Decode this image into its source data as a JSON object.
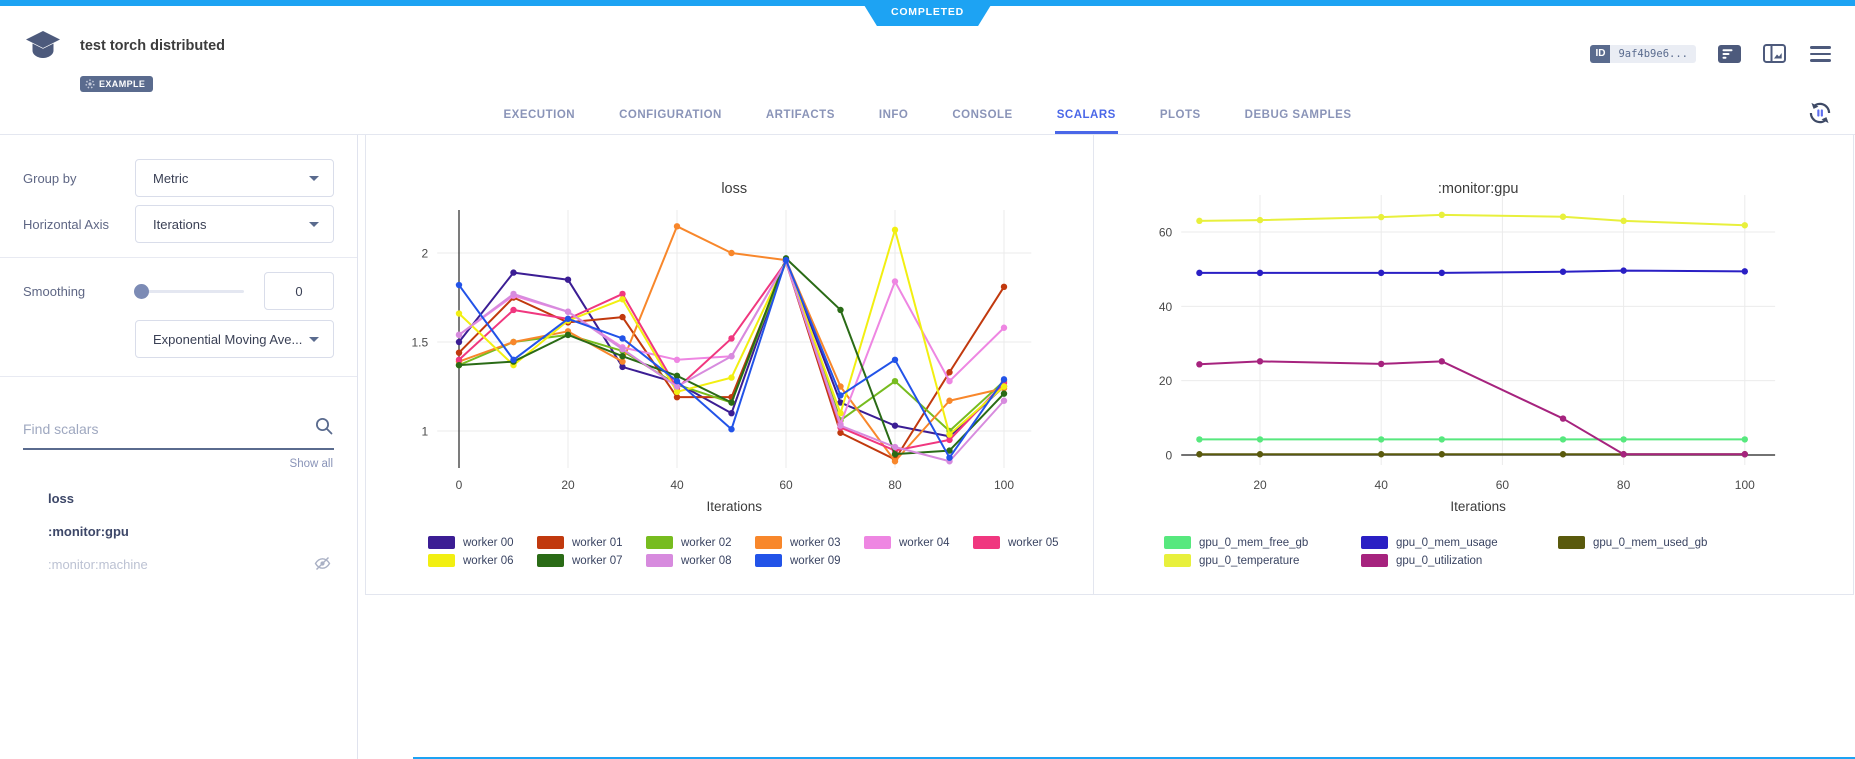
{
  "status_banner": {
    "label": "COMPLETED",
    "color": "#1da3f3"
  },
  "header": {
    "title": "test torch distributed",
    "example_badge": "EXAMPLE",
    "id_badge": {
      "label": "ID",
      "value": "9af4b9e6..."
    }
  },
  "tabs": {
    "items": [
      "EXECUTION",
      "CONFIGURATION",
      "ARTIFACTS",
      "INFO",
      "CONSOLE",
      "SCALARS",
      "PLOTS",
      "DEBUG SAMPLES"
    ],
    "active": "SCALARS",
    "active_color": "#4a67e8"
  },
  "sidebar": {
    "group_by": {
      "label": "Group by",
      "value": "Metric"
    },
    "horizontal_axis": {
      "label": "Horizontal Axis",
      "value": "Iterations"
    },
    "smoothing": {
      "label": "Smoothing",
      "value": "0",
      "method": "Exponential Moving Ave..."
    },
    "search": {
      "placeholder": "Find scalars"
    },
    "show_all": "Show all",
    "metrics": [
      {
        "label": "loss",
        "hidden": false
      },
      {
        "label": ":monitor:gpu",
        "hidden": false
      },
      {
        "label": ":monitor:machine",
        "hidden": true
      }
    ]
  },
  "chart_data": [
    {
      "type": "line",
      "title": "loss",
      "xlabel": "Iterations",
      "ylabel": "",
      "grid": true,
      "legend_position": "bottom",
      "x": [
        0,
        10,
        20,
        30,
        40,
        50,
        60,
        70,
        80,
        90,
        100
      ],
      "xlim": [
        -4,
        105
      ],
      "ylim": [
        0.78,
        2.25
      ],
      "xticks": [
        0,
        20,
        40,
        60,
        80,
        100
      ],
      "yticks": [
        1,
        1.5,
        2
      ],
      "zeroline": "x",
      "series": [
        {
          "name": "worker 00",
          "color": "#3b1d94",
          "values": [
            1.5,
            1.89,
            1.85,
            1.36,
            1.27,
            1.1,
            1.96,
            1.16,
            1.03,
            0.97,
            1.25
          ]
        },
        {
          "name": "worker 01",
          "color": "#c1390e",
          "values": [
            1.44,
            1.75,
            1.61,
            1.64,
            1.19,
            1.19,
            1.95,
            0.99,
            0.84,
            1.33,
            1.81
          ]
        },
        {
          "name": "worker 02",
          "color": "#77bc1f",
          "values": [
            1.37,
            1.5,
            1.54,
            1.45,
            1.26,
            1.16,
            1.95,
            1.06,
            1.28,
            1.0,
            1.28
          ]
        },
        {
          "name": "worker 03",
          "color": "#f8872b",
          "values": [
            1.39,
            1.5,
            1.56,
            1.39,
            2.15,
            2.0,
            1.96,
            1.25,
            0.83,
            1.17,
            1.24
          ]
        },
        {
          "name": "worker 04",
          "color": "#ee86e2",
          "values": [
            1.54,
            1.76,
            1.67,
            1.47,
            1.4,
            1.42,
            1.95,
            1.04,
            1.84,
            1.28,
            1.58
          ]
        },
        {
          "name": "worker 05",
          "color": "#f0377f",
          "values": [
            1.4,
            1.68,
            1.63,
            1.77,
            1.24,
            1.52,
            1.95,
            1.02,
            0.89,
            0.95,
            1.27
          ]
        },
        {
          "name": "worker 06",
          "color": "#f2ef11",
          "values": [
            1.66,
            1.37,
            1.62,
            1.74,
            1.22,
            1.3,
            1.95,
            1.1,
            2.13,
            0.98,
            1.25
          ]
        },
        {
          "name": "worker 07",
          "color": "#2a6b16",
          "values": [
            1.37,
            1.39,
            1.54,
            1.42,
            1.31,
            1.16,
            1.97,
            1.68,
            0.87,
            0.89,
            1.21
          ]
        },
        {
          "name": "worker 08",
          "color": "#d78bde",
          "values": [
            1.54,
            1.77,
            1.67,
            1.46,
            1.25,
            1.42,
            1.95,
            1.03,
            0.91,
            0.83,
            1.17
          ]
        },
        {
          "name": "worker 09",
          "color": "#2253e8",
          "values": [
            1.82,
            1.4,
            1.63,
            1.52,
            1.28,
            1.01,
            1.96,
            1.2,
            1.4,
            0.85,
            1.29
          ]
        }
      ]
    },
    {
      "type": "line",
      "title": ":monitor:gpu",
      "xlabel": "Iterations",
      "ylabel": "",
      "grid": true,
      "legend_position": "bottom",
      "x": [
        10,
        20,
        40,
        50,
        70,
        80,
        100
      ],
      "xlim": [
        7,
        105
      ],
      "ylim": [
        -2,
        70
      ],
      "xticks": [
        20,
        40,
        60,
        80,
        100
      ],
      "yticks": [
        0,
        20,
        40,
        60
      ],
      "zeroline": "y",
      "series": [
        {
          "name": "gpu_0_mem_free_gb",
          "color": "#57e87e",
          "values": [
            4.2,
            4.2,
            4.2,
            4.2,
            4.2,
            4.2,
            4.2
          ]
        },
        {
          "name": "gpu_0_mem_usage",
          "color": "#2a1fc4",
          "values": [
            49,
            49,
            49,
            49,
            49.3,
            49.6,
            49.4
          ]
        },
        {
          "name": "gpu_0_mem_used_gb",
          "color": "#5a5a0d",
          "values": [
            0.2,
            0.2,
            0.2,
            0.2,
            0.2,
            0.2,
            0.2
          ]
        },
        {
          "name": "gpu_0_temperature",
          "color": "#e8f03c",
          "values": [
            63,
            63.2,
            64,
            64.6,
            64.1,
            63,
            61.8
          ]
        },
        {
          "name": "gpu_0_utilization",
          "color": "#a6237e",
          "values": [
            24.4,
            25.2,
            24.5,
            25.2,
            9.8,
            0.2,
            0.2
          ]
        }
      ]
    }
  ]
}
